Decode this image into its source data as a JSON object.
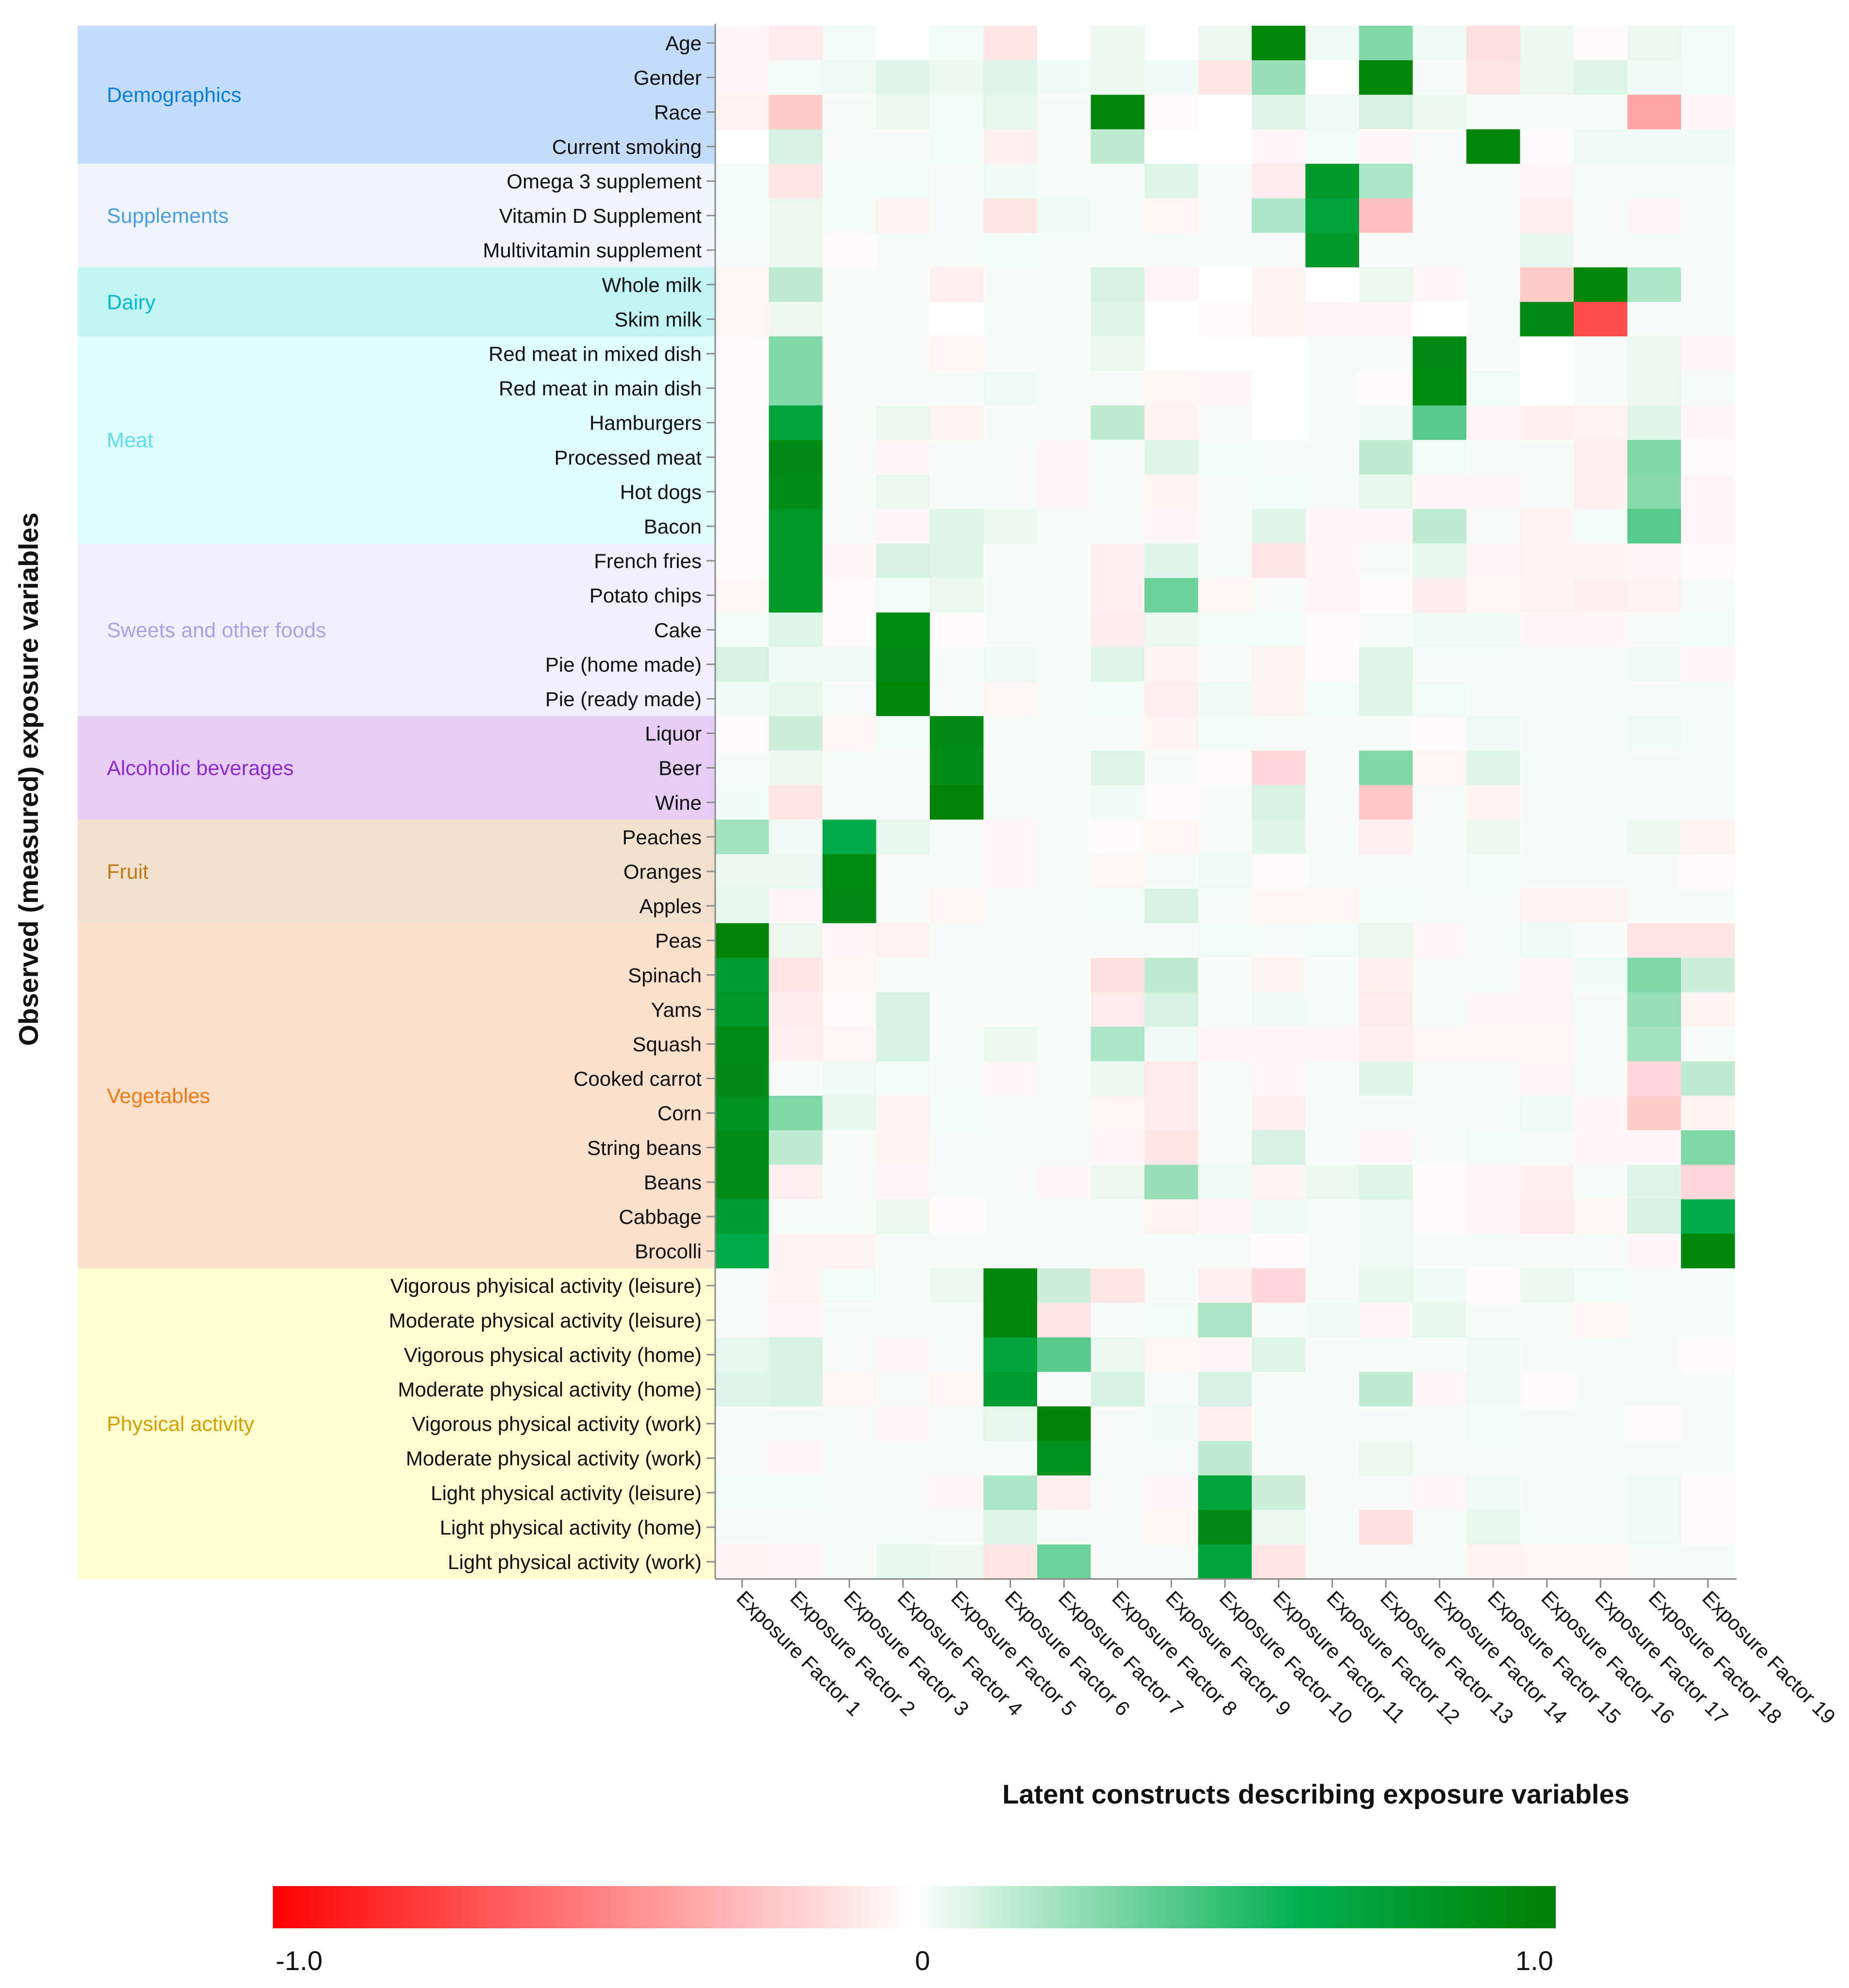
{
  "chart_data": {
    "type": "heatmap",
    "title": "",
    "ylabel": "Observed (measured) exposure variables",
    "xlabel": "Latent constructs describing exposure variables",
    "columns": [
      "Exposure Factor 1",
      "Exposure Factor 2",
      "Exposure Factor 3",
      "Exposure Factor 4",
      "Exposure Factor 5",
      "Exposure Factor 6",
      "Exposure Factor 7",
      "Exposure Factor 8",
      "Exposure Factor 9",
      "Exposure Factor 10",
      "Exposure Factor 11",
      "Exposure Factor 12",
      "Exposure Factor 13",
      "Exposure Factor 14",
      "Exposure Factor 15",
      "Exposure Factor 16",
      "Exposure Factor 17",
      "Exposure Factor 18",
      "Exposure Factor 19"
    ],
    "groups": [
      {
        "name": "Demographics",
        "color": "#c2dcfa",
        "text_color": "#0a7ee0",
        "rows": [
          "Age",
          "Gender",
          "Race",
          "Current smoking"
        ]
      },
      {
        "name": "Supplements",
        "color": "#f0f5fd",
        "text_color": "#4a9de0",
        "rows": [
          "Omega 3 supplement",
          "Vitamin D Supplement",
          "Multivitamin supplement"
        ]
      },
      {
        "name": "Dairy",
        "color": "#c3f4f4",
        "text_color": "#00b8c8",
        "rows": [
          "Whole milk",
          "Skim milk"
        ]
      },
      {
        "name": "Meat",
        "color": "#e0fdfd",
        "text_color": "#5cdcec",
        "rows": [
          "Red meat in mixed dish",
          "Red meat in main dish",
          "Hamburgers",
          "Processed meat",
          "Hot dogs",
          "Bacon"
        ]
      },
      {
        "name": "Sweets and other foods",
        "color": "#efeffd",
        "text_color": "#a3a3e6",
        "rows": [
          "French fries",
          "Potato chips",
          "Cake",
          "Pie (home made)",
          "Pie (ready made)"
        ]
      },
      {
        "name": "Alcoholic beverages",
        "color": "#e6cdf5",
        "text_color": "#8a2ad0",
        "rows": [
          "Liquor",
          "Beer",
          "Wine"
        ]
      },
      {
        "name": "Fruit",
        "color": "#f0e0cc",
        "text_color": "#c07818",
        "rows": [
          "Peaches",
          "Oranges",
          "Apples"
        ]
      },
      {
        "name": "Vegetables",
        "color": "#fde0cc",
        "text_color": "#ec7a10",
        "rows": [
          "Peas",
          "Spinach",
          "Yams",
          "Squash",
          "Cooked carrot",
          "Corn",
          "String beans",
          "Beans",
          "Cabbage",
          "Brocolli"
        ]
      },
      {
        "name": "Physical activity",
        "color": "#fdfdd0",
        "text_color": "#d4a000",
        "rows": [
          "Vigorous phyisical activity (leisure)",
          "Moderate physical activity (leisure)",
          "Vigorous physical activity (home)",
          "Moderate physical activity (home)",
          "Vigorous physical activity (work)",
          "Moderate physical activity (work)",
          "Light physical activity (leisure)",
          "Light physical activity (home)",
          "Light physical activity (work)"
        ]
      }
    ],
    "values": [
      [
        -0.03,
        -0.08,
        0.03,
        0,
        0.03,
        -0.1,
        0,
        0.05,
        0,
        0.05,
        0.95,
        0.04,
        0.3,
        0.04,
        -0.13,
        0.05,
        -0.02,
        0.05,
        0.03
      ],
      [
        -0.03,
        0.03,
        0.04,
        0.07,
        0.05,
        0.08,
        0.04,
        0.05,
        0.04,
        -0.1,
        0.25,
        0,
        0.95,
        0.02,
        -0.1,
        0.05,
        0.08,
        0.04,
        0.03
      ],
      [
        -0.05,
        -0.2,
        0.02,
        0.05,
        0.03,
        0.06,
        0.02,
        0.95,
        -0.02,
        0,
        0.08,
        0.04,
        0.1,
        0.05,
        0.02,
        0.02,
        0.02,
        -0.35,
        -0.03
      ],
      [
        0,
        0.1,
        0.02,
        0.02,
        0.03,
        -0.06,
        0.02,
        0.15,
        0,
        0,
        -0.03,
        0.03,
        -0.03,
        0.02,
        0.95,
        -0.02,
        0.04,
        0.04,
        0.04
      ],
      [
        0.03,
        -0.1,
        0.03,
        0.03,
        0.02,
        0.04,
        0.02,
        0.02,
        0.08,
        0.02,
        -0.08,
        0.8,
        0.2,
        0.02,
        0.02,
        -0.03,
        0.02,
        0.02,
        0.02
      ],
      [
        0.03,
        0.05,
        0.03,
        -0.05,
        0.02,
        -0.1,
        0.04,
        0.02,
        -0.04,
        0.02,
        0.2,
        0.7,
        -0.25,
        0.02,
        0.02,
        -0.06,
        0.02,
        -0.03,
        0.02
      ],
      [
        0.02,
        0.05,
        -0.02,
        0.02,
        0.02,
        0.03,
        0.02,
        0.02,
        0.02,
        0.02,
        0.02,
        0.8,
        0.02,
        0.02,
        0.02,
        0.06,
        0.02,
        0.02,
        0.02
      ],
      [
        -0.04,
        0.15,
        0.02,
        0.02,
        -0.06,
        0.02,
        0.02,
        0.1,
        -0.03,
        0,
        -0.05,
        0,
        0.05,
        -0.03,
        0.02,
        -0.2,
        0.95,
        0.2,
        0.02
      ],
      [
        -0.04,
        0.05,
        0.02,
        0.02,
        0,
        0.02,
        0.02,
        0.08,
        0,
        -0.02,
        -0.05,
        -0.03,
        -0.03,
        0,
        0.02,
        0.9,
        -0.7,
        0.02,
        0.02
      ],
      [
        -0.02,
        0.3,
        0.02,
        0.02,
        -0.04,
        0.02,
        0.02,
        0.05,
        0,
        0,
        0,
        0.02,
        0.02,
        0.9,
        0.02,
        0,
        0.02,
        0.05,
        -0.03
      ],
      [
        -0.02,
        0.3,
        0.02,
        0.02,
        0.02,
        0.04,
        0.02,
        0.02,
        -0.04,
        -0.03,
        0,
        0.02,
        -0.02,
        0.92,
        0.03,
        0,
        0.02,
        0.05,
        0.02
      ],
      [
        -0.02,
        0.7,
        0.02,
        0.05,
        -0.05,
        0.02,
        0.02,
        0.15,
        -0.05,
        0.02,
        0,
        0.02,
        0.04,
        0.4,
        -0.03,
        -0.06,
        -0.05,
        0.07,
        -0.03
      ],
      [
        -0.02,
        0.9,
        0.02,
        -0.03,
        0.02,
        0.02,
        -0.03,
        0.02,
        0.08,
        0.03,
        0.02,
        0.02,
        0.15,
        0.03,
        0.02,
        0.02,
        -0.06,
        0.3,
        -0.02
      ],
      [
        -0.02,
        0.88,
        0.02,
        0.05,
        0.02,
        0.02,
        -0.03,
        0.02,
        -0.05,
        0.02,
        0.03,
        0.02,
        0.06,
        -0.03,
        -0.03,
        0.02,
        -0.06,
        0.28,
        -0.03
      ],
      [
        -0.02,
        0.8,
        0.02,
        -0.03,
        0.07,
        0.05,
        0.02,
        0.02,
        -0.03,
        0.02,
        0.07,
        -0.03,
        -0.03,
        0.15,
        0.02,
        -0.05,
        0.03,
        0.4,
        -0.03
      ],
      [
        -0.02,
        0.8,
        -0.03,
        0.1,
        0.07,
        0.02,
        0.02,
        -0.06,
        0.08,
        0.02,
        -0.1,
        -0.03,
        0.02,
        0.06,
        -0.03,
        -0.05,
        -0.05,
        -0.03,
        -0.02
      ],
      [
        -0.04,
        0.78,
        -0.02,
        0.03,
        0.05,
        0.02,
        0.02,
        -0.06,
        0.35,
        -0.04,
        0.02,
        -0.03,
        -0.02,
        -0.08,
        -0.04,
        -0.05,
        -0.06,
        -0.05,
        0.02
      ],
      [
        0.03,
        0.08,
        -0.02,
        0.92,
        -0.02,
        0.02,
        0.02,
        -0.07,
        0.05,
        0.03,
        0.03,
        -0.02,
        0.02,
        0.04,
        0.04,
        -0.03,
        -0.03,
        0.02,
        0.03
      ],
      [
        0.1,
        0.04,
        0.04,
        0.9,
        0.02,
        0.04,
        0.02,
        0.08,
        -0.05,
        0.02,
        -0.05,
        -0.02,
        0.07,
        0.02,
        0.02,
        0.02,
        0.02,
        0.04,
        -0.03
      ],
      [
        0.04,
        0.06,
        0.02,
        0.95,
        0.02,
        -0.04,
        0.02,
        0.03,
        -0.06,
        0.04,
        -0.05,
        0.03,
        0.07,
        0.03,
        0.02,
        0.02,
        0.02,
        0.02,
        0.02
      ],
      [
        -0.02,
        0.12,
        -0.04,
        0.03,
        0.9,
        0.02,
        0.02,
        0.02,
        -0.05,
        0.03,
        0.02,
        0.02,
        0.02,
        -0.02,
        0.04,
        0.02,
        0.02,
        0.04,
        0.02
      ],
      [
        0.02,
        0.05,
        0.02,
        0.02,
        0.88,
        0.02,
        0.02,
        0.08,
        0.02,
        -0.02,
        -0.15,
        0.02,
        0.3,
        -0.04,
        0.08,
        0.02,
        0.02,
        0.02,
        0.02
      ],
      [
        0.04,
        -0.1,
        0.02,
        0.02,
        0.97,
        0.02,
        0.02,
        0.04,
        -0.02,
        0.02,
        0.1,
        0.02,
        -0.22,
        0.02,
        -0.05,
        0.02,
        0.02,
        0.02,
        0.02
      ],
      [
        0.22,
        0.04,
        0.65,
        0.06,
        0.02,
        -0.03,
        0.02,
        -0.02,
        -0.04,
        0.02,
        0.07,
        0.02,
        -0.06,
        0.02,
        0.05,
        0.02,
        0.02,
        0.05,
        -0.05
      ],
      [
        0.05,
        0.05,
        0.92,
        0.02,
        0.02,
        -0.03,
        0.02,
        -0.04,
        0.02,
        0.04,
        -0.02,
        0.02,
        0.02,
        0.02,
        0.03,
        0.02,
        0.02,
        0.02,
        -0.02
      ],
      [
        0.06,
        -0.03,
        0.9,
        0.02,
        -0.04,
        0.02,
        0.02,
        0.03,
        0.1,
        0.02,
        -0.04,
        -0.04,
        0.03,
        0.02,
        0.02,
        -0.05,
        -0.05,
        0.02,
        0.02
      ],
      [
        0.97,
        0.05,
        -0.03,
        -0.05,
        0.02,
        0.02,
        0.02,
        0.02,
        0.02,
        0.03,
        0.02,
        0.03,
        0.05,
        -0.03,
        0.02,
        0.04,
        0.02,
        -0.1,
        -0.1
      ],
      [
        0.75,
        -0.1,
        -0.04,
        0.02,
        0.02,
        0.02,
        0.02,
        -0.12,
        0.15,
        0.02,
        -0.05,
        0.02,
        -0.06,
        0.02,
        0.02,
        -0.03,
        0.04,
        0.3,
        0.12
      ],
      [
        0.8,
        -0.07,
        -0.02,
        0.1,
        0.02,
        0.02,
        0.02,
        -0.08,
        0.1,
        0.02,
        0.04,
        0.02,
        -0.08,
        0.02,
        -0.03,
        -0.03,
        0.02,
        0.25,
        -0.05
      ],
      [
        0.88,
        -0.06,
        -0.04,
        0.1,
        0.02,
        0.05,
        0.02,
        0.2,
        0.04,
        -0.03,
        -0.03,
        -0.03,
        -0.06,
        -0.04,
        -0.04,
        -0.04,
        0.02,
        0.22,
        0.02
      ],
      [
        0.9,
        0.02,
        0.04,
        0.03,
        0.02,
        -0.03,
        0.02,
        0.05,
        -0.08,
        0.02,
        -0.03,
        0.02,
        0.07,
        0.02,
        0.02,
        -0.03,
        0.02,
        -0.15,
        0.15
      ],
      [
        0.85,
        0.3,
        0.06,
        -0.05,
        0.03,
        0.02,
        0.02,
        -0.04,
        -0.08,
        0.02,
        -0.06,
        0.02,
        0.02,
        0.02,
        0.02,
        0.04,
        -0.03,
        -0.2,
        -0.05
      ],
      [
        0.88,
        0.15,
        0.02,
        -0.05,
        0.02,
        0.02,
        0.02,
        -0.03,
        -0.1,
        0.02,
        0.1,
        0.02,
        -0.03,
        0.02,
        0.03,
        0.02,
        -0.03,
        -0.03,
        0.3
      ],
      [
        0.88,
        -0.06,
        0.02,
        -0.03,
        0.02,
        0.02,
        -0.03,
        0.05,
        0.25,
        0.04,
        -0.05,
        0.05,
        0.08,
        -0.02,
        -0.03,
        -0.06,
        0.02,
        0.07,
        -0.15
      ],
      [
        0.75,
        0.02,
        0.02,
        0.05,
        -0.02,
        0.02,
        0.02,
        0.02,
        -0.05,
        -0.03,
        0.04,
        0.02,
        0.04,
        -0.02,
        -0.03,
        -0.08,
        -0.04,
        0.1,
        0.65
      ],
      [
        0.65,
        -0.05,
        -0.05,
        0.02,
        0.02,
        0.02,
        0.02,
        0.02,
        0.02,
        0.02,
        -0.02,
        0.02,
        0.04,
        0.02,
        0.02,
        0.02,
        0.02,
        -0.03,
        0.95
      ],
      [
        0.02,
        -0.05,
        0.03,
        0.02,
        0.05,
        0.95,
        0.12,
        -0.1,
        0.02,
        -0.06,
        -0.15,
        0.02,
        0.06,
        0.04,
        -0.02,
        0.05,
        0.03,
        0.02,
        0.02
      ],
      [
        0.02,
        -0.03,
        0.02,
        0.02,
        0.02,
        0.95,
        -0.1,
        0.02,
        0.03,
        0.2,
        0.02,
        0.04,
        -0.03,
        0.06,
        0.02,
        0.02,
        -0.04,
        0.02,
        0.02
      ],
      [
        0.06,
        0.1,
        0.02,
        -0.03,
        0.02,
        0.7,
        0.4,
        0.05,
        -0.04,
        -0.03,
        0.08,
        0.02,
        0.02,
        0.02,
        0.04,
        0.02,
        0.02,
        0.02,
        -0.02
      ],
      [
        0.07,
        0.1,
        -0.04,
        0.02,
        -0.04,
        0.75,
        0.02,
        0.1,
        0.02,
        0.1,
        0.02,
        0.02,
        0.15,
        -0.03,
        0.04,
        -0.02,
        0.02,
        0.02,
        0.02
      ],
      [
        0.02,
        0.02,
        0.02,
        -0.03,
        0.02,
        0.06,
        0.97,
        0.02,
        0.04,
        -0.06,
        0.02,
        0.02,
        0.02,
        0.02,
        0.03,
        0.02,
        0.02,
        -0.02,
        0.02
      ],
      [
        0.02,
        -0.03,
        0.02,
        0.02,
        0.02,
        0.02,
        0.85,
        0.02,
        0.02,
        0.15,
        0.02,
        0.02,
        0.05,
        0.02,
        0.02,
        0.02,
        0.02,
        0.02,
        0.02
      ],
      [
        0.03,
        0.03,
        0.02,
        0.02,
        -0.03,
        0.2,
        -0.06,
        0.02,
        -0.03,
        0.7,
        0.12,
        0.02,
        0.02,
        -0.03,
        0.04,
        0.02,
        0.02,
        0.04,
        -0.02
      ],
      [
        0.02,
        0.02,
        0.02,
        0.02,
        0.02,
        0.08,
        0.02,
        0.02,
        -0.04,
        0.9,
        0.05,
        0.02,
        -0.12,
        0.02,
        0.06,
        0.02,
        0.02,
        0.04,
        -0.02
      ],
      [
        -0.05,
        -0.03,
        0.02,
        0.06,
        0.05,
        -0.1,
        0.35,
        0.02,
        0.02,
        0.7,
        -0.1,
        0.02,
        0.02,
        0.02,
        -0.05,
        -0.04,
        -0.04,
        0.02,
        0.02
      ]
    ],
    "colorbar": {
      "min": -1.0,
      "max": 1.0,
      "tick_labels": [
        "-1.0",
        "0",
        "1.0"
      ]
    },
    "colors": {
      "negative": "#ff0000",
      "zero": "#ffffff",
      "positive_mid": "#00b050",
      "positive_max": "#008000"
    }
  }
}
